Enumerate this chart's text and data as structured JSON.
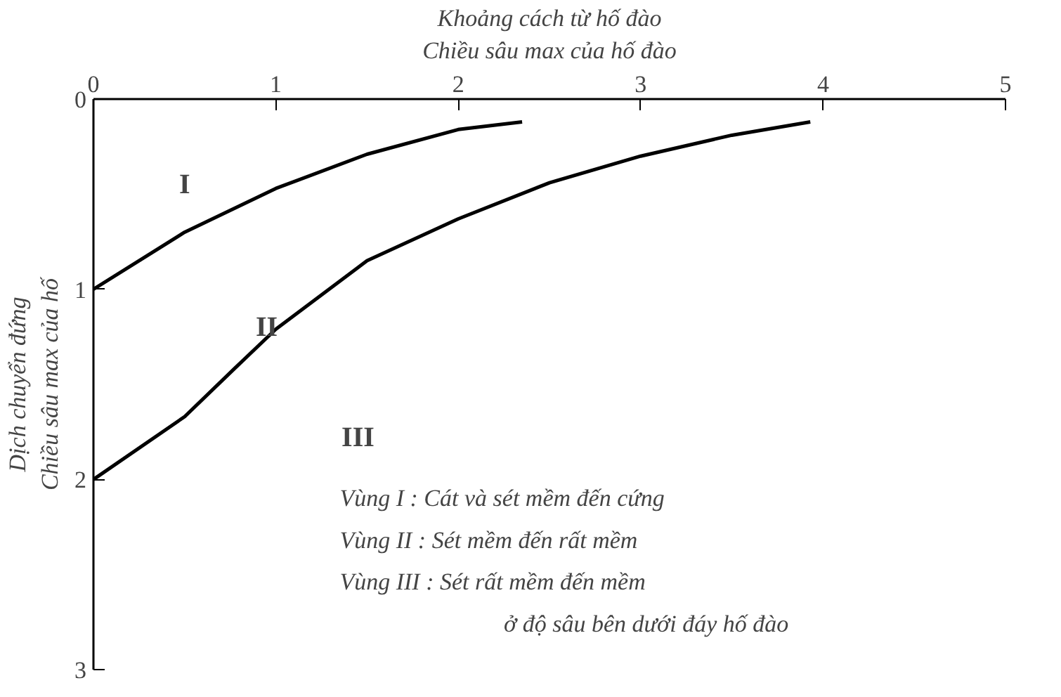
{
  "chart_data": {
    "type": "line",
    "xlabel": "Khoảng cách từ hố đào\nChiều sâu max của hố đào",
    "ylabel": "Dịch chuyển đứng\nChiều sâu max của hố",
    "series": [
      {
        "color": "#000000",
        "x": [
          0,
          0.5,
          1,
          1.5,
          2,
          2.35
        ],
        "values": [
          1.0,
          0.7,
          0.47,
          0.29,
          0.16,
          0.12
        ]
      },
      {
        "color": "#000000",
        "x": [
          0,
          0.5,
          0.77,
          1,
          1.5,
          2,
          2.5,
          3,
          3.5,
          3.93
        ],
        "values": [
          2.0,
          1.67,
          1.42,
          1.21,
          0.85,
          0.63,
          0.44,
          0.3,
          0.19,
          0.12
        ]
      }
    ],
    "xlim": [
      0,
      5
    ],
    "xticks": [
      0,
      1,
      2,
      3,
      4,
      5
    ],
    "ylim": [
      3,
      0
    ],
    "yticks": [
      0,
      1,
      2,
      3
    ],
    "grid": false,
    "marker": "none",
    "line_style": "solid",
    "annotations": [
      "I",
      "II",
      "III",
      "Vùng I : Cát và sét mềm đến cứng",
      "Vùng II : Sét mềm đến rất mềm",
      "Vùng III : Sét rất mềm đến mềm",
      "ở độ sâu bên dưới đáy hố đào"
    ]
  }
}
